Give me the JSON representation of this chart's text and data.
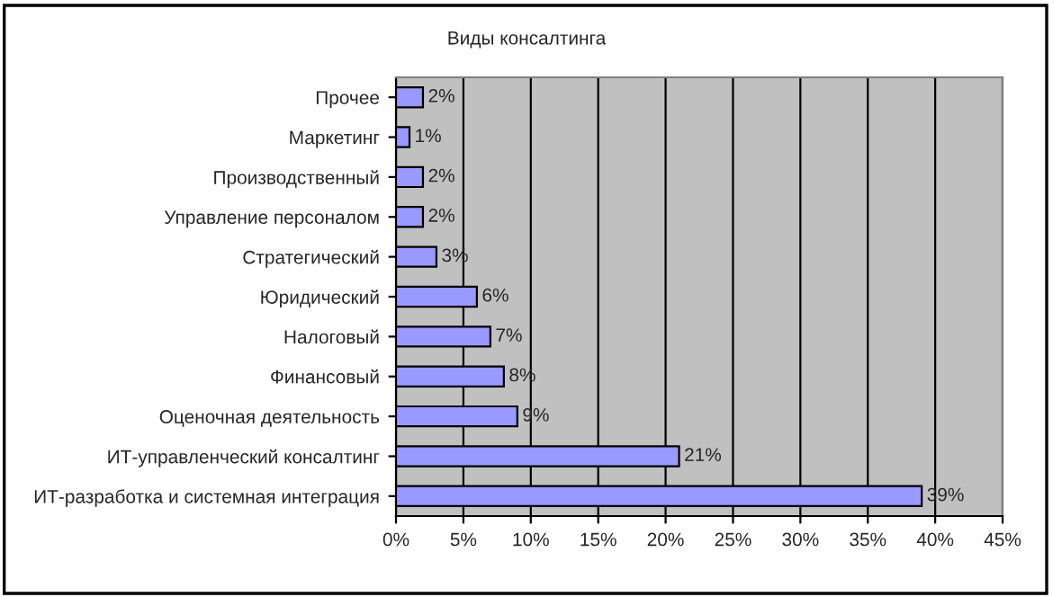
{
  "chart_data": {
    "type": "bar",
    "orientation": "horizontal",
    "title": "Виды консалтинга",
    "categories": [
      "Прочее",
      "Маркетинг",
      "Производственный",
      "Управление персоналом",
      "Стратегический",
      "Юридический",
      "Налоговый",
      "Финансовый",
      "Оценочная деятельность",
      "ИТ-управленческий консалтинг",
      "ИТ-разработка и системная интеграция"
    ],
    "values": [
      2,
      1,
      2,
      2,
      3,
      6,
      7,
      8,
      9,
      21,
      39
    ],
    "value_labels": [
      "2%",
      "1%",
      "2%",
      "2%",
      "3%",
      "6%",
      "7%",
      "8%",
      "9%",
      "21%",
      "39%"
    ],
    "color": "#9999ff",
    "xlim": [
      0,
      45
    ],
    "xticks": [
      {
        "value": 0,
        "label": "0%"
      },
      {
        "value": 5,
        "label": "5%"
      },
      {
        "value": 10,
        "label": "10%"
      },
      {
        "value": 15,
        "label": "15%"
      },
      {
        "value": 20,
        "label": "20%"
      },
      {
        "value": 25,
        "label": "25%"
      },
      {
        "value": 30,
        "label": "30%"
      },
      {
        "value": 35,
        "label": "35%"
      },
      {
        "value": 40,
        "label": "40%"
      },
      {
        "value": 45,
        "label": "45%"
      }
    ],
    "grid": "x",
    "legend": false
  }
}
